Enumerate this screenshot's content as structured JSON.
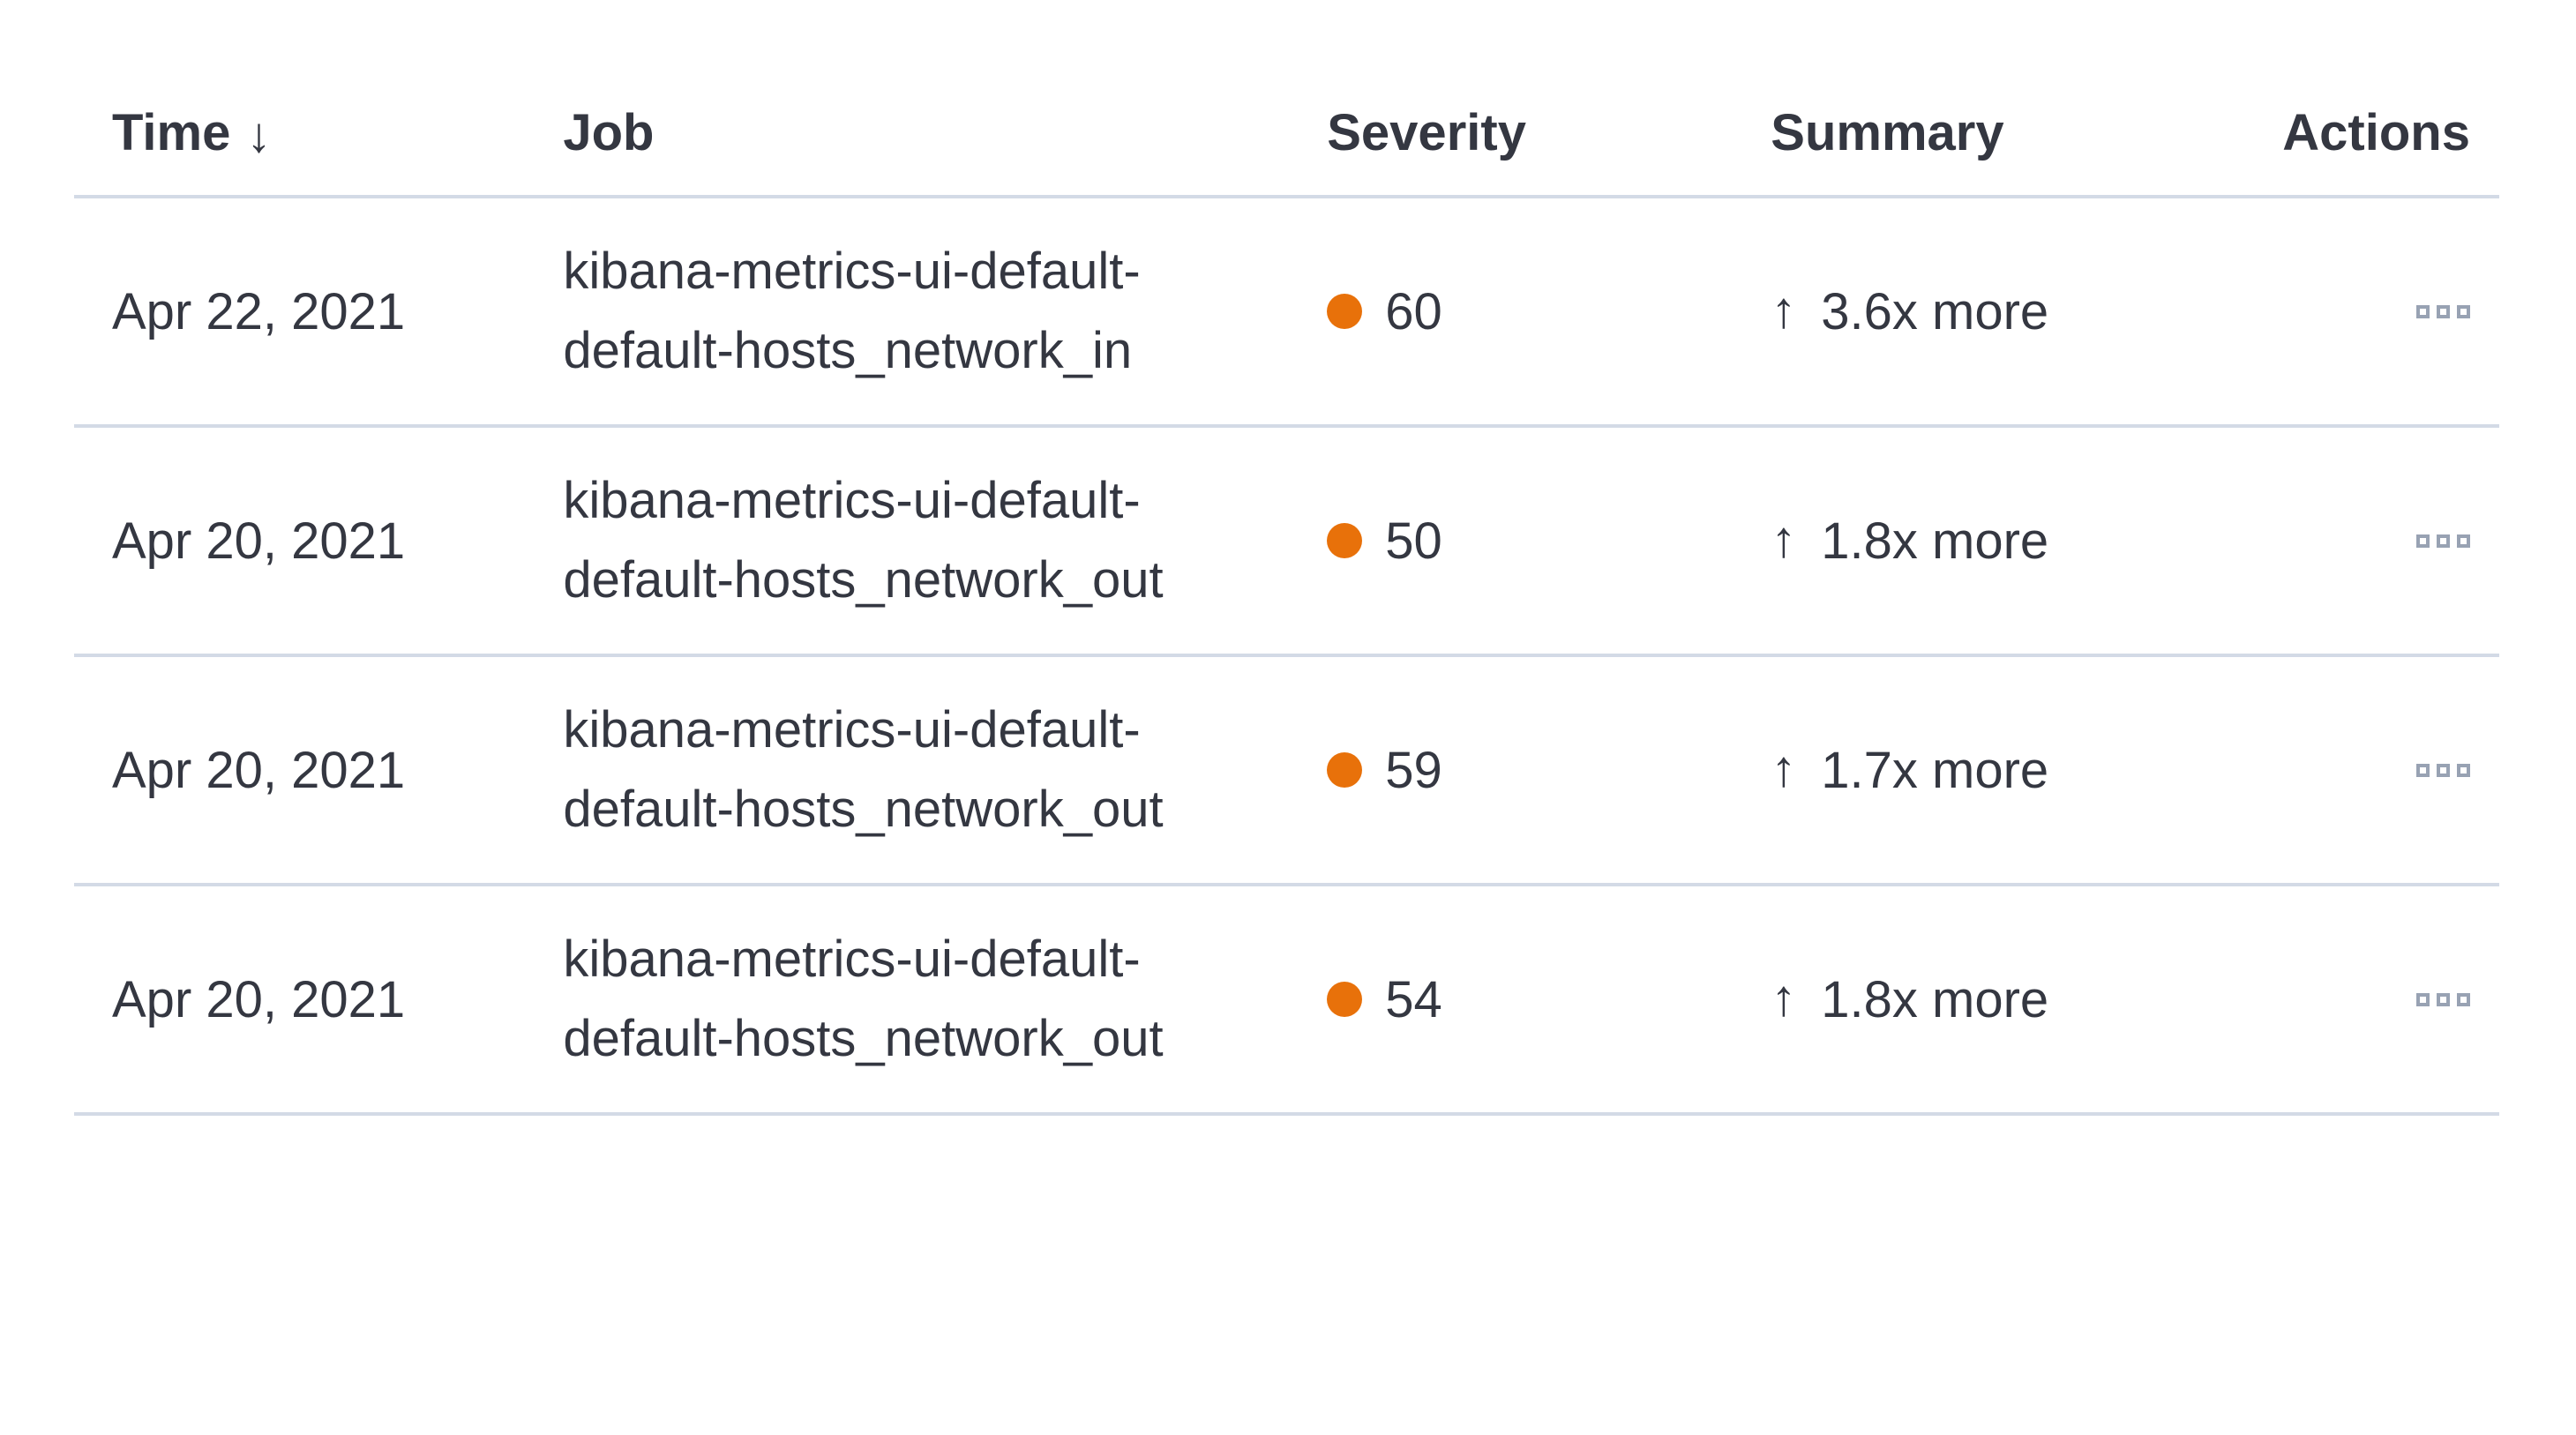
{
  "icons": {
    "sort_down_glyph": "↓",
    "arrow_up_glyph": "↑"
  },
  "colors": {
    "text": "#343741",
    "border": "#d3dae6",
    "severity_dot": "#e8710a",
    "actions_icon": "#98a2b3"
  },
  "table": {
    "columns": [
      {
        "key": "time",
        "label": "Time",
        "sorted": "descending"
      },
      {
        "key": "job",
        "label": "Job"
      },
      {
        "key": "severity",
        "label": "Severity"
      },
      {
        "key": "summary",
        "label": "Summary"
      },
      {
        "key": "actions",
        "label": "Actions"
      }
    ],
    "rows": [
      {
        "time": "Apr 22, 2021",
        "job": "kibana-metrics-ui-default-default-hosts_network_in",
        "severity": "60",
        "summary": "3.6x more"
      },
      {
        "time": "Apr 20, 2021",
        "job": "kibana-metrics-ui-default-default-hosts_network_out",
        "severity": "50",
        "summary": "1.8x more"
      },
      {
        "time": "Apr 20, 2021",
        "job": "kibana-metrics-ui-default-default-hosts_network_out",
        "severity": "59",
        "summary": "1.7x more"
      },
      {
        "time": "Apr 20, 2021",
        "job": "kibana-metrics-ui-default-default-hosts_network_out",
        "severity": "54",
        "summary": "1.8x more"
      }
    ]
  }
}
